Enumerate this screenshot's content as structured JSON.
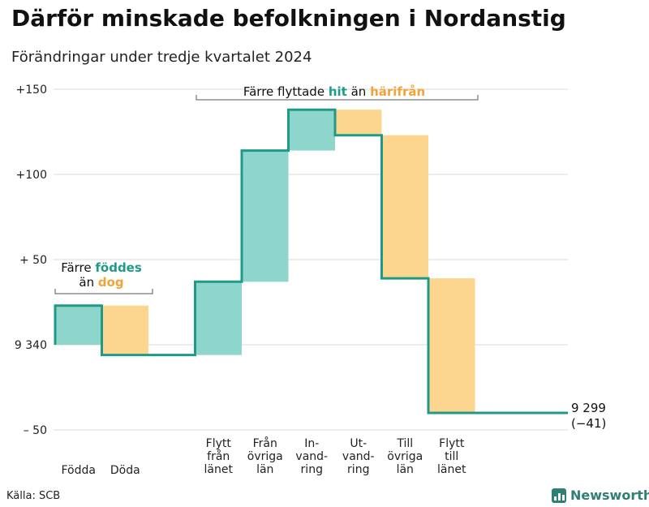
{
  "title": "Därför minskade befolkningen i Nordanstig",
  "subtitle": "Förändringar under tredje kvartalet 2024",
  "source": "Källa: SCB",
  "brand": "Newsworthy",
  "colors": {
    "increase_fill": "#8ed6cb",
    "decrease_fill": "#fcd68f",
    "line": "#1f9a88",
    "increase_text": "#1f9a88",
    "decrease_text": "#f2a33a",
    "grid": "#d9d9d9"
  },
  "chart_data": {
    "type": "waterfall",
    "baseline": 9340,
    "y_tick_values": [
      150,
      100,
      50,
      0,
      -50
    ],
    "y_tick_labels": [
      "+150",
      "+100",
      "+ 50",
      "9 340",
      "– 50"
    ],
    "ylim": [
      -50,
      150
    ],
    "steps": [
      {
        "label": [
          "Födda"
        ],
        "value": 23,
        "direction": "increase"
      },
      {
        "label": [
          "Döda"
        ],
        "value": -29,
        "direction": "decrease"
      },
      {
        "label": [],
        "value": 0,
        "direction": "none"
      },
      {
        "label": [
          "Flytt",
          "från",
          "länet"
        ],
        "value": 43,
        "direction": "increase"
      },
      {
        "label": [
          "Från",
          "övriga",
          "län"
        ],
        "value": 77,
        "direction": "increase"
      },
      {
        "label": [
          "In-",
          "vand-",
          "ring"
        ],
        "value": 24,
        "direction": "increase"
      },
      {
        "label": [
          "Ut-",
          "vand-",
          "ring"
        ],
        "value": -15,
        "direction": "decrease"
      },
      {
        "label": [
          "Till",
          "övriga",
          "län"
        ],
        "value": -84,
        "direction": "decrease"
      },
      {
        "label": [
          "Flytt",
          "till",
          "länet"
        ],
        "value": -79,
        "direction": "decrease"
      }
    ],
    "end_label": "9 299",
    "end_change": "(−41)",
    "annotations": [
      {
        "text_before": "Färre ",
        "highlight1": "föddes",
        "line2_before": "än ",
        "highlight2": "dog"
      },
      {
        "text_before": "Färre flyttade ",
        "highlight1": "hit",
        "middle": " än ",
        "highlight2": "härifrån"
      }
    ]
  }
}
